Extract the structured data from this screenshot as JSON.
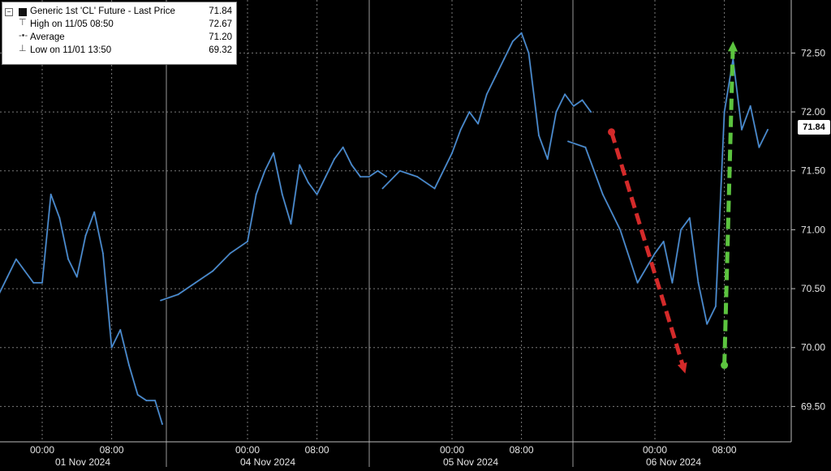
{
  "legend": {
    "title": "Generic 1st 'CL' Future - Last Price",
    "last": "71.84",
    "high_label": "High on 11/05 08:50",
    "high": "72.67",
    "avg_label": "Average",
    "avg": "71.20",
    "low_label": "Low on 11/01 13:50",
    "low": "69.32"
  },
  "price_tag": "71.84",
  "chart_data": {
    "type": "line",
    "title": "",
    "xlabel": "",
    "ylabel": "",
    "ylim": [
      69.2,
      72.95
    ],
    "y_ticks": [
      "69.50",
      "70.00",
      "70.50",
      "71.00",
      "71.50",
      "72.00",
      "72.50"
    ],
    "y_tick_values": [
      69.5,
      70.0,
      70.5,
      71.0,
      71.5,
      72.0,
      72.5
    ],
    "x_time_labels": [
      {
        "label": "00:00",
        "day": "01 Nov 2024",
        "hour": 0
      },
      {
        "label": "08:00",
        "day": "01 Nov 2024",
        "hour": 8
      },
      {
        "label": "00:00",
        "day": "04 Nov 2024",
        "hour": 0
      },
      {
        "label": "08:00",
        "day": "04 Nov 2024",
        "hour": 8
      },
      {
        "label": "00:00",
        "day": "05 Nov 2024",
        "hour": 0
      },
      {
        "label": "08:00",
        "day": "05 Nov 2024",
        "hour": 8
      },
      {
        "label": "00:00",
        "day": "06 Nov 2024",
        "hour": 0
      },
      {
        "label": "08:00",
        "day": "06 Nov 2024",
        "hour": 8
      }
    ],
    "day_labels": [
      "01 Nov 2024",
      "04 Nov 2024",
      "05 Nov 2024",
      "06 Nov 2024"
    ],
    "grid": true,
    "series": [
      {
        "name": "Generic 1st 'CL' Future - Last Price",
        "color": "#4a90d9",
        "x": [
          "01 Nov -5h",
          "01 Nov -4h",
          "01 Nov -3h",
          "01 Nov -2h",
          "01 Nov -1h",
          "01 Nov 00:00",
          "01 Nov 01:00",
          "01 Nov 02:00",
          "01 Nov 03:00",
          "01 Nov 04:00",
          "01 Nov 05:00",
          "01 Nov 06:00",
          "01 Nov 07:00",
          "01 Nov 08:00",
          "01 Nov 09:00",
          "01 Nov 10:00",
          "01 Nov 11:00",
          "01 Nov 12:00",
          "01 Nov 13:00",
          "01 Nov 13:50",
          "04 Nov -10h",
          "04 Nov -8h",
          "04 Nov -6h",
          "04 Nov -4h",
          "04 Nov -2h",
          "04 Nov 00:00",
          "04 Nov 01:00",
          "04 Nov 02:00",
          "04 Nov 03:00",
          "04 Nov 04:00",
          "04 Nov 05:00",
          "04 Nov 06:00",
          "04 Nov 07:00",
          "04 Nov 08:00",
          "04 Nov 09:00",
          "04 Nov 10:00",
          "04 Nov 11:00",
          "04 Nov 12:00",
          "04 Nov 13:00",
          "04 Nov 14:00",
          "04 Nov 15:00",
          "04 Nov 16:00",
          "05 Nov -8h",
          "05 Nov -6h",
          "05 Nov -4h",
          "05 Nov -2h",
          "05 Nov 00:00",
          "05 Nov 01:00",
          "05 Nov 02:00",
          "05 Nov 03:00",
          "05 Nov 04:00",
          "05 Nov 05:00",
          "05 Nov 06:00",
          "05 Nov 07:00",
          "05 Nov 08:00",
          "05 Nov 08:50",
          "05 Nov 10:00",
          "05 Nov 11:00",
          "05 Nov 12:00",
          "05 Nov 13:00",
          "05 Nov 14:00",
          "05 Nov 15:00",
          "05 Nov 16:00",
          "06 Nov -10h",
          "06 Nov -8h",
          "06 Nov -6h",
          "06 Nov -4h",
          "06 Nov -2h",
          "06 Nov 00:00",
          "06 Nov 01:00",
          "06 Nov 02:00",
          "06 Nov 03:00",
          "06 Nov 04:00",
          "06 Nov 05:00",
          "06 Nov 06:00",
          "06 Nov 07:00",
          "06 Nov 08:00",
          "06 Nov 09:00",
          "06 Nov 10:00",
          "06 Nov 11:00",
          "06 Nov 12:00",
          "06 Nov 13:00"
        ],
        "y": [
          70.45,
          70.6,
          70.75,
          70.65,
          70.55,
          70.55,
          71.3,
          71.1,
          70.75,
          70.6,
          70.95,
          71.15,
          70.8,
          70.0,
          70.15,
          69.85,
          69.6,
          69.55,
          69.55,
          69.35,
          70.4,
          70.45,
          70.55,
          70.65,
          70.8,
          70.9,
          71.3,
          71.5,
          71.65,
          71.3,
          71.05,
          71.55,
          71.4,
          71.3,
          71.45,
          71.6,
          71.7,
          71.55,
          71.45,
          71.45,
          71.5,
          71.45,
          71.35,
          71.5,
          71.45,
          71.35,
          71.65,
          71.85,
          72.0,
          71.9,
          72.15,
          72.3,
          72.45,
          72.6,
          72.67,
          72.5,
          71.8,
          71.6,
          72.0,
          72.15,
          72.05,
          72.1,
          72.0,
          71.75,
          71.7,
          71.3,
          71.0,
          70.55,
          70.8,
          70.9,
          70.55,
          71.0,
          71.1,
          70.55,
          70.2,
          70.35,
          72.0,
          72.45,
          71.85,
          72.05,
          71.7,
          71.85
        ]
      }
    ],
    "annotations": [
      {
        "type": "arrow",
        "color": "#d42a2a",
        "style": "dashed",
        "direction": "down",
        "from": {
          "x": "06 Nov -5h",
          "y": 71.83
        },
        "to": {
          "x": "06 Nov 03:30",
          "y": 69.78
        }
      },
      {
        "type": "arrow",
        "color": "#5cc43f",
        "style": "dashed",
        "direction": "up",
        "from": {
          "x": "06 Nov 08:00",
          "y": 69.85
        },
        "to": {
          "x": "06 Nov 09:00",
          "y": 72.6
        }
      }
    ]
  }
}
